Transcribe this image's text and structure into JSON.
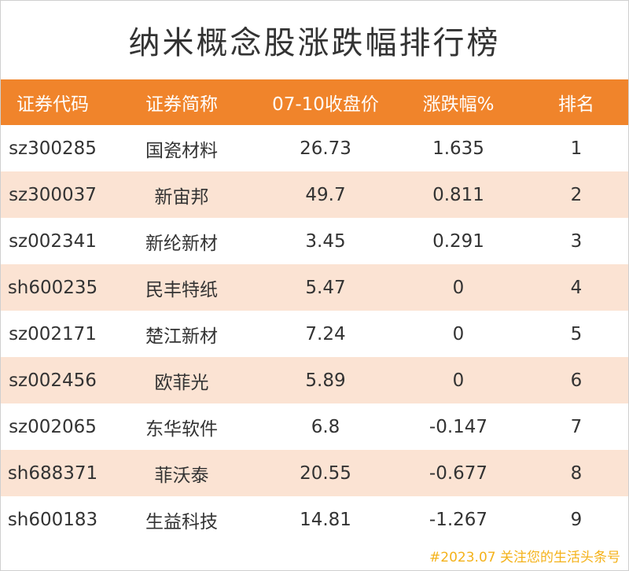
{
  "title": "纳米概念股涨跌幅排行榜",
  "columns": [
    "证券代码",
    "证券简称",
    "07-10收盘价",
    "涨跌幅%",
    "排名"
  ],
  "rows": [
    [
      "sz300285",
      "国瓷材料",
      "26.73",
      "1.635",
      "1"
    ],
    [
      "sz300037",
      "新宙邦",
      "49.7",
      "0.811",
      "2"
    ],
    [
      "sz002341",
      "新纶新材",
      "3.45",
      "0.291",
      "3"
    ],
    [
      "sh600235",
      "民丰特纸",
      "5.47",
      "0",
      "4"
    ],
    [
      "sz002171",
      "楚江新材",
      "7.24",
      "0",
      "5"
    ],
    [
      "sz002456",
      "欧菲光",
      "5.89",
      "0",
      "6"
    ],
    [
      "sz002065",
      "东华软件",
      "6.8",
      "-0.147",
      "7"
    ],
    [
      "sh688371",
      "菲沃泰",
      "20.55",
      "-0.677",
      "8"
    ],
    [
      "sh600183",
      "生益科技",
      "14.81",
      "-1.267",
      "9"
    ]
  ],
  "watermark": "#2023.07 关注您的生活头条号",
  "colors": {
    "header_bg": "#f0842b",
    "alt_row_bg": "#fbe3d3",
    "watermark": "#f4b21a"
  }
}
